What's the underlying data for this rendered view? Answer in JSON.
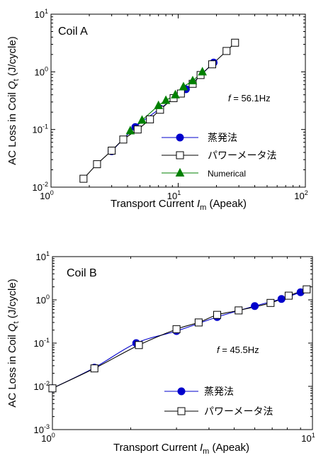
{
  "chart_data": [
    {
      "type": "line",
      "panel_label": "Coil A",
      "annotation": {
        "prefix": "f",
        "text": " = 56.1Hz"
      },
      "xlabel": {
        "pre": "Transport Current",
        "var": "I",
        "sub": "m",
        "post": "(Apeak)"
      },
      "ylabel": {
        "pre": "AC Loss in Coil",
        "var": "Q",
        "sub": "t",
        "post": "(J/cycle)"
      },
      "x_scale": "log",
      "y_scale": "log",
      "xlim": [
        1,
        100
      ],
      "ylim": [
        0.01,
        10
      ],
      "x_ticks": [
        {
          "base": "10",
          "exp": "0"
        },
        {
          "base": "10",
          "exp": "1"
        },
        {
          "base": "10",
          "exp": "2"
        }
      ],
      "y_ticks": [
        {
          "base": "10",
          "exp": "-2"
        },
        {
          "base": "10",
          "exp": "-1"
        },
        {
          "base": "10",
          "exp": "0"
        },
        {
          "base": "10",
          "exp": "1"
        }
      ],
      "legend_position": "bottom-right",
      "series": [
        {
          "name": "蒸発法",
          "color": "#0000cc",
          "marker": "circle",
          "x": [
            3,
            4.6,
            7.2,
            11.5,
            19
          ],
          "y": [
            0.042,
            0.11,
            0.23,
            0.5,
            1.45
          ]
        },
        {
          "name": "パワーメータ法",
          "color": "#000000",
          "marker": "square",
          "x": [
            1.8,
            2.3,
            3,
            3.7,
            4.8,
            6,
            7.2,
            9.2,
            10.5,
            13,
            15,
            18.5,
            24,
            28
          ],
          "y": [
            0.014,
            0.025,
            0.043,
            0.067,
            0.1,
            0.15,
            0.22,
            0.35,
            0.42,
            0.62,
            0.88,
            1.35,
            2.3,
            3.2
          ]
        },
        {
          "name": "Numerical",
          "color": "#008000",
          "marker": "triangle",
          "x": [
            4.2,
            5.2,
            7,
            8,
            9.5,
            11,
            13,
            15.5
          ],
          "y": [
            0.095,
            0.145,
            0.26,
            0.32,
            0.4,
            0.55,
            0.7,
            1.0
          ]
        }
      ]
    },
    {
      "type": "line",
      "panel_label": "Coil B",
      "annotation": {
        "prefix": "f",
        "text": " = 45.5Hz"
      },
      "xlabel": {
        "pre": "Transport Current",
        "var": "I",
        "sub": "m",
        "post": "(Apeak)"
      },
      "ylabel": {
        "pre": "AC Loss in Coil",
        "var": "Q",
        "sub": "t",
        "post": "(J/cycle)"
      },
      "x_scale": "log",
      "y_scale": "log",
      "xlim": [
        1,
        10
      ],
      "ylim": [
        0.001,
        10
      ],
      "x_ticks": [
        {
          "base": "10",
          "exp": "0"
        },
        {
          "base": "10",
          "exp": "1"
        }
      ],
      "y_ticks": [
        {
          "base": "10",
          "exp": "-3"
        },
        {
          "base": "10",
          "exp": "-2"
        },
        {
          "base": "10",
          "exp": "-1"
        },
        {
          "base": "10",
          "exp": "0"
        },
        {
          "base": "10",
          "exp": "1"
        }
      ],
      "legend_position": "bottom-right",
      "series": [
        {
          "name": "蒸発法",
          "color": "#0000cc",
          "marker": "circle",
          "x": [
            1,
            1.45,
            2.1,
            3,
            4.3,
            6,
            7.6,
            9
          ],
          "y": [
            0.009,
            0.027,
            0.1,
            0.19,
            0.4,
            0.72,
            1.05,
            1.5
          ]
        },
        {
          "name": "パワーメータ法",
          "color": "#000000",
          "marker": "square",
          "x": [
            1,
            1.45,
            2.15,
            3,
            3.65,
            4.3,
            5.2,
            6.9,
            8.1,
            9.5
          ],
          "y": [
            0.009,
            0.026,
            0.09,
            0.21,
            0.3,
            0.45,
            0.57,
            0.85,
            1.25,
            1.75
          ]
        }
      ]
    }
  ]
}
